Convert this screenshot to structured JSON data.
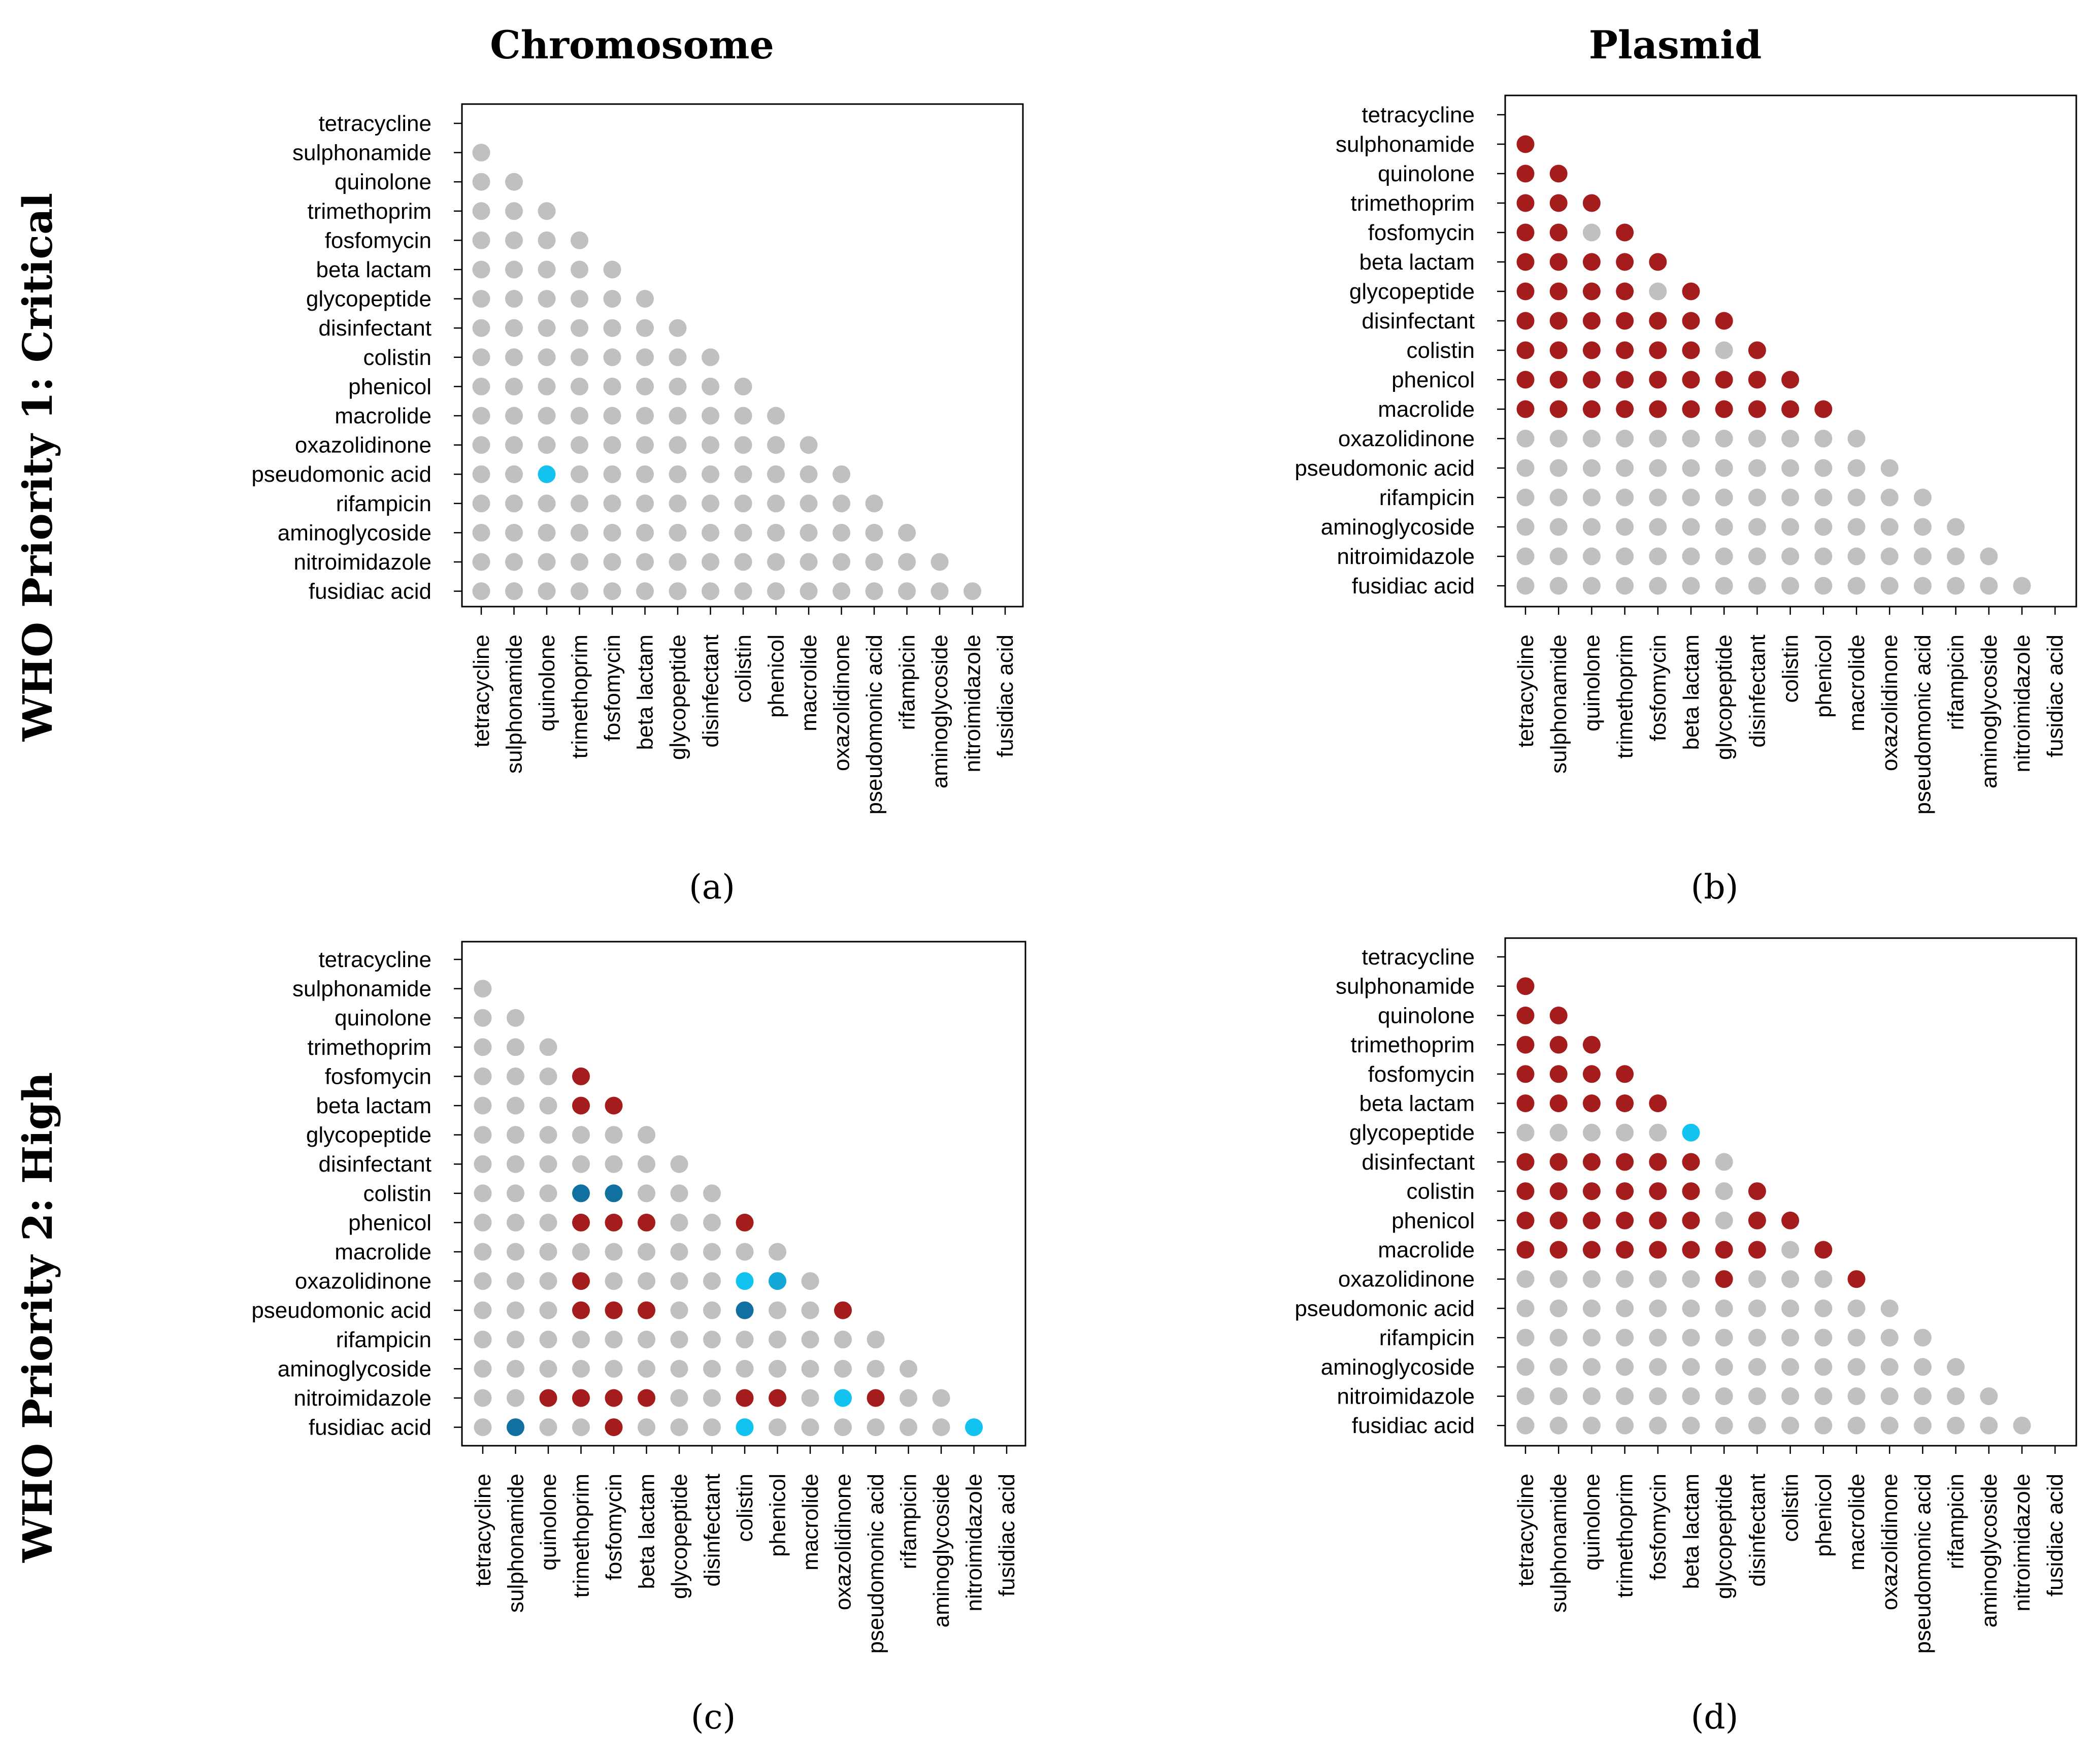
{
  "column_titles": [
    "Chromosome",
    "Plasmid"
  ],
  "row_titles": [
    "WHO Priority 1: Critical",
    "WHO Priority 2: High"
  ],
  "colors": {
    "0": "#c0c0c0",
    "1": "#a51c1c",
    "2": "#12c3f0",
    "3": "#1270a0",
    "4": "#13a8d8"
  },
  "chart_data": [
    {
      "type": "scatter",
      "panel_label": "(a)",
      "categories": [
        "tetracycline",
        "sulphonamide",
        "quinolone",
        "trimethoprim",
        "fosfomycin",
        "beta lactam",
        "glycopeptide",
        "disinfectant",
        "colistin",
        "phenicol",
        "macrolide",
        "oxazolidinone",
        "pseudomonic acid",
        "rifampicin",
        "aminoglycoside",
        "nitroimidazole",
        "fusidiac acid"
      ],
      "matrix": [
        "",
        "0",
        "00",
        "000",
        "0000",
        "00000",
        "000000",
        "0000000",
        "00000000",
        "000000000",
        "0000000000",
        "00000000000",
        "002000000000",
        "0000000000000",
        "00000000000000",
        "000000000000000",
        "0000000000000000"
      ]
    },
    {
      "type": "scatter",
      "panel_label": "(b)",
      "categories": [
        "tetracycline",
        "sulphonamide",
        "quinolone",
        "trimethoprim",
        "fosfomycin",
        "beta lactam",
        "glycopeptide",
        "disinfectant",
        "colistin",
        "phenicol",
        "macrolide",
        "oxazolidinone",
        "pseudomonic acid",
        "rifampicin",
        "aminoglycoside",
        "nitroimidazole",
        "fusidiac acid"
      ],
      "matrix": [
        "",
        "1",
        "11",
        "111",
        "1101",
        "11111",
        "111101",
        "1111111",
        "11111101",
        "111111111",
        "1111111111",
        "00000000000",
        "000000000000",
        "0000000000000",
        "00000000000000",
        "000000000000000",
        "0000000000000000"
      ]
    },
    {
      "type": "scatter",
      "panel_label": "(c)",
      "categories": [
        "tetracycline",
        "sulphonamide",
        "quinolone",
        "trimethoprim",
        "fosfomycin",
        "beta lactam",
        "glycopeptide",
        "disinfectant",
        "colistin",
        "phenicol",
        "macrolide",
        "oxazolidinone",
        "pseudomonic acid",
        "rifampicin",
        "aminoglycoside",
        "nitroimidazole",
        "fusidiac acid"
      ],
      "matrix": [
        "",
        "0",
        "00",
        "000",
        "0001",
        "00011",
        "000000",
        "0000000",
        "00033000",
        "000111001",
        "0000000000",
        "00010000240",
        "000111003001",
        "0000000000000",
        "00000000000000",
        "001111001102100",
        "0300100020000002"
      ]
    },
    {
      "type": "scatter",
      "panel_label": "(d)",
      "categories": [
        "tetracycline",
        "sulphonamide",
        "quinolone",
        "trimethoprim",
        "fosfomycin",
        "beta lactam",
        "glycopeptide",
        "disinfectant",
        "colistin",
        "phenicol",
        "macrolide",
        "oxazolidinone",
        "pseudomonic acid",
        "rifampicin",
        "aminoglycoside",
        "nitroimidazole",
        "fusidiac acid"
      ],
      "matrix": [
        "",
        "1",
        "11",
        "111",
        "1111",
        "11111",
        "000002",
        "1111110",
        "11111101",
        "111111011",
        "1111111101",
        "00000010001",
        "000000000000",
        "0000000000000",
        "00000000000000",
        "000000000000000",
        "0000000000000000"
      ]
    }
  ]
}
